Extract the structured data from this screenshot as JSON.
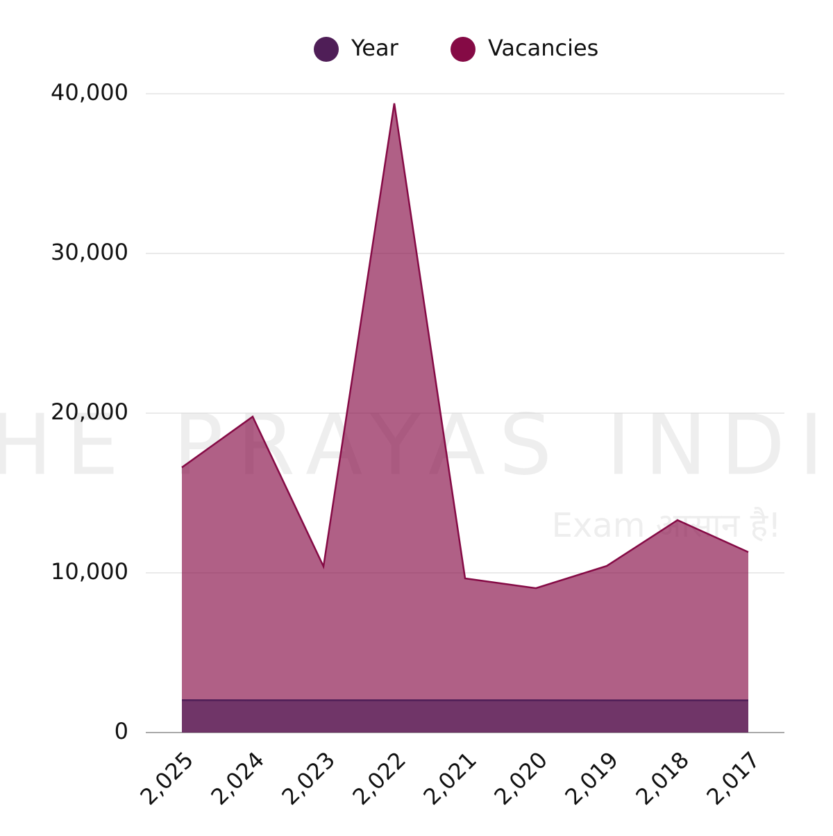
{
  "chart_data": {
    "type": "area",
    "categories": [
      "2,025",
      "2,024",
      "2,023",
      "2,022",
      "2,021",
      "2,020",
      "2,019",
      "2,018",
      "2,017"
    ],
    "series": [
      {
        "name": "Year",
        "color": "#4f1e57",
        "values": [
          2025,
          2024,
          2023,
          2022,
          2021,
          2020,
          2019,
          2018,
          2017
        ]
      },
      {
        "name": "Vacancies",
        "color": "#850a45",
        "values": [
          16600,
          19780,
          10400,
          39400,
          9650,
          9040,
          10430,
          13300,
          11300
        ]
      }
    ],
    "ylim": [
      0,
      40000
    ],
    "yticks": [
      0,
      {
        "value": 10000,
        "label": "10,000"
      },
      {
        "value": 20000,
        "label": "20,000"
      },
      {
        "value": 30000,
        "label": "30,000"
      },
      {
        "value": 40000,
        "label": "40,000"
      }
    ],
    "grid": true,
    "legend": "top"
  },
  "watermark": {
    "brand": "THE PRAYAS INDIA",
    "tagline": "Exam आसान है!"
  }
}
